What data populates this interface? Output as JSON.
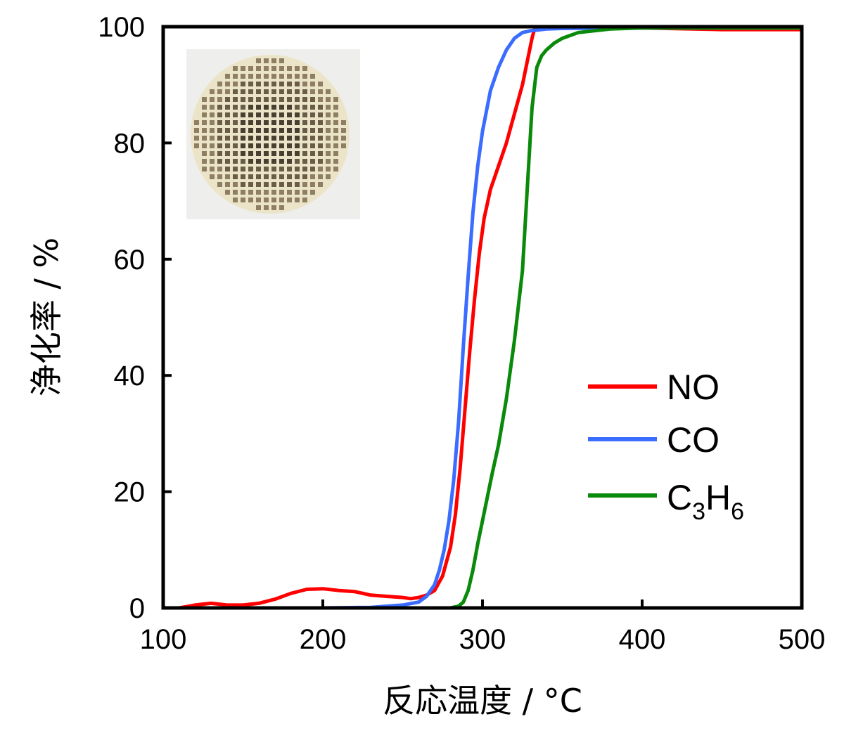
{
  "chart_data": {
    "type": "line",
    "title": "",
    "xlabel": "反応温度 / °C",
    "ylabel": "浄化率 / %",
    "xlim": [
      100,
      500
    ],
    "ylim": [
      0,
      100
    ],
    "xticks": [
      100,
      200,
      300,
      400,
      500
    ],
    "yticks": [
      0,
      20,
      40,
      60,
      80,
      100
    ],
    "grid": false,
    "legend_position": "lower-right",
    "inset_image": "honeycomb-catalyst-photo",
    "series": [
      {
        "name": "NO",
        "color": "#ff0000",
        "x": [
          100,
          110,
          120,
          130,
          140,
          150,
          160,
          170,
          180,
          190,
          200,
          210,
          220,
          230,
          240,
          250,
          255,
          260,
          265,
          270,
          275,
          280,
          283,
          286,
          289,
          292,
          295,
          298,
          301,
          305,
          310,
          315,
          320,
          325,
          328,
          331,
          333,
          340,
          350,
          400,
          450,
          500
        ],
        "y": [
          0,
          0,
          0.5,
          0.8,
          0.5,
          0.5,
          0.8,
          1.5,
          2.5,
          3.2,
          3.3,
          3.0,
          2.8,
          2.2,
          2.0,
          1.8,
          1.6,
          1.8,
          2.2,
          3.0,
          5.5,
          10.5,
          16,
          24,
          34,
          44,
          53,
          61,
          67,
          72,
          76,
          80,
          85,
          90,
          94,
          98,
          100,
          100,
          100,
          99.8,
          99.5,
          99.5
        ]
      },
      {
        "name": "CO",
        "color": "#3a6cff",
        "x": [
          100,
          150,
          200,
          230,
          250,
          260,
          265,
          270,
          273,
          276,
          279,
          282,
          285,
          288,
          291,
          294,
          297,
          300,
          305,
          310,
          315,
          320,
          325,
          330,
          340,
          350,
          400,
          450,
          500
        ],
        "y": [
          0,
          0,
          0,
          0.1,
          0.5,
          1.0,
          2.0,
          4.0,
          6.5,
          10,
          15,
          22,
          32,
          45,
          57,
          68,
          76,
          82,
          89,
          93,
          96,
          98,
          99,
          99.3,
          99.6,
          99.7,
          99.8,
          99.8,
          99.8
        ]
      },
      {
        "name": "C3H6",
        "color": "#0a8a0a",
        "x": [
          100,
          200,
          260,
          280,
          285,
          288,
          291,
          294,
          297,
          300,
          303,
          306,
          310,
          315,
          320,
          325,
          328,
          331,
          334,
          337,
          340,
          345,
          350,
          360,
          380,
          400,
          450,
          500
        ],
        "y": [
          0,
          0,
          0,
          0,
          0.3,
          1.0,
          3,
          6.5,
          11,
          15,
          19,
          23,
          28,
          36,
          46,
          58,
          72,
          86,
          93,
          95,
          96,
          97.2,
          98,
          99,
          99.6,
          99.8,
          99.8,
          99.8
        ]
      }
    ]
  }
}
